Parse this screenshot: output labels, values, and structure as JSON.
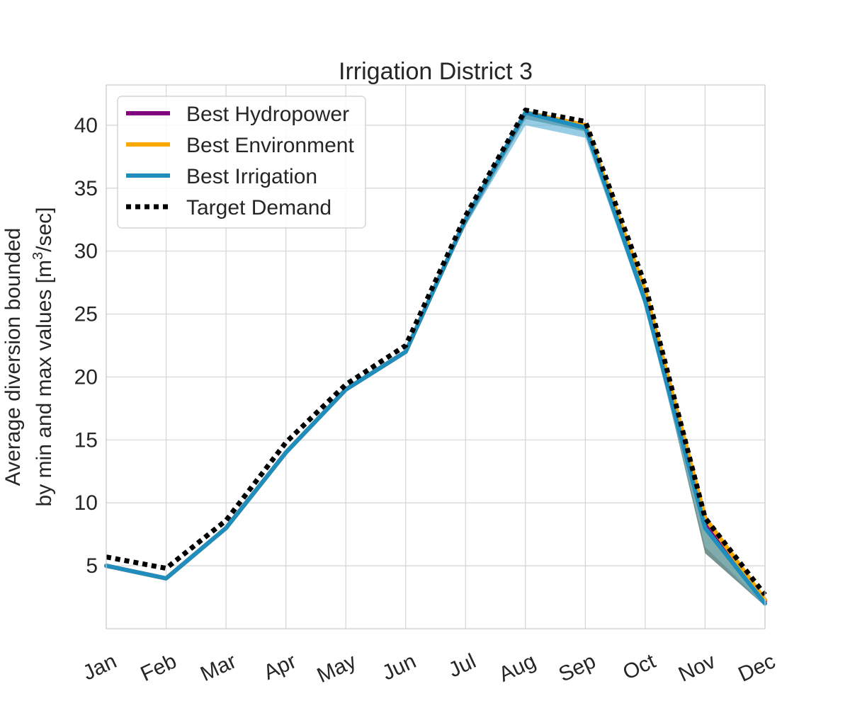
{
  "chart_data": {
    "type": "line",
    "title": "Irrigation District 3",
    "xlabel": "",
    "ylabel_line1": "Average diversion bounded",
    "ylabel_line2_pre": "by min and max values [m",
    "ylabel_line2_sup": "3",
    "ylabel_line2_post": "/sec]",
    "categories": [
      "Jan",
      "Feb",
      "Mar",
      "Apr",
      "May",
      "Jun",
      "Jul",
      "Aug",
      "Sep",
      "Oct",
      "Nov",
      "Dec"
    ],
    "yticks": [
      5,
      10,
      15,
      20,
      25,
      30,
      35,
      40
    ],
    "ylim": [
      0,
      43.2
    ],
    "grid": true,
    "legend_position": "upper-left",
    "series": [
      {
        "name": "Best Hydropower",
        "color": "#800080",
        "style": "solid",
        "values": [
          5.0,
          4.0,
          8.0,
          14.0,
          19.0,
          22.0,
          32.5,
          41.0,
          40.0,
          26.5,
          8.5,
          2.2
        ],
        "band": {
          "min": [
            5.0,
            4.0,
            8.0,
            14.0,
            19.0,
            22.0,
            32.0,
            40.5,
            39.5,
            26.0,
            6.0,
            1.8
          ],
          "max": [
            5.0,
            4.0,
            8.0,
            14.0,
            19.0,
            22.0,
            32.5,
            41.0,
            40.0,
            26.5,
            8.5,
            2.2
          ]
        }
      },
      {
        "name": "Best Environment",
        "color": "#f9a800",
        "style": "solid",
        "values": [
          5.0,
          4.0,
          8.0,
          14.0,
          19.0,
          22.0,
          32.5,
          41.0,
          40.0,
          26.8,
          8.8,
          2.3
        ],
        "band": {
          "min": [
            5.0,
            4.0,
            8.0,
            14.0,
            19.0,
            22.0,
            32.3,
            40.8,
            39.8,
            26.2,
            6.5,
            2.0
          ],
          "max": [
            5.0,
            4.0,
            8.0,
            14.0,
            19.0,
            22.0,
            32.6,
            41.2,
            40.2,
            26.8,
            9.0,
            2.5
          ]
        }
      },
      {
        "name": "Best Irrigation",
        "color": "#1f8ebd",
        "style": "solid",
        "values": [
          5.0,
          4.0,
          8.0,
          14.0,
          19.0,
          22.0,
          32.5,
          41.0,
          39.8,
          26.0,
          8.0,
          2.0
        ],
        "band": {
          "min": [
            5.0,
            4.0,
            8.0,
            14.0,
            19.0,
            22.0,
            32.0,
            40.0,
            39.0,
            25.5,
            6.5,
            1.8
          ],
          "max": [
            5.0,
            4.0,
            8.0,
            14.0,
            19.0,
            22.0,
            32.5,
            41.0,
            40.0,
            26.5,
            8.5,
            2.2
          ]
        }
      },
      {
        "name": "Target Demand",
        "color": "#000000",
        "style": "dotted",
        "values": [
          5.7,
          4.8,
          8.6,
          14.8,
          19.4,
          22.5,
          32.8,
          41.2,
          40.3,
          27.3,
          8.8,
          2.7
        ]
      }
    ],
    "band_colors": {
      "overlap": "#5e7f7a",
      "environment": "#f5b038",
      "irrigation": "#5fb2d6"
    }
  }
}
